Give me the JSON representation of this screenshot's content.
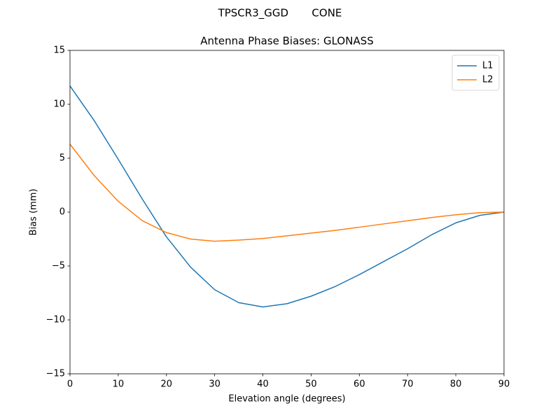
{
  "chart_data": {
    "type": "line",
    "suptitle": "TPSCR3_GGD       CONE",
    "title": "Antenna Phase Biases: GLONASS",
    "xlabel": "Elevation angle (degrees)",
    "ylabel": "Bias (mm)",
    "x": [
      0,
      5,
      10,
      15,
      20,
      25,
      30,
      35,
      40,
      45,
      50,
      55,
      60,
      65,
      70,
      75,
      80,
      85,
      90
    ],
    "series": [
      {
        "name": "L1",
        "color": "#1f77b4",
        "values": [
          11.7,
          8.5,
          4.9,
          1.2,
          -2.3,
          -5.1,
          -7.2,
          -8.4,
          -8.8,
          -8.5,
          -7.8,
          -6.9,
          -5.8,
          -4.6,
          -3.4,
          -2.1,
          -1.0,
          -0.3,
          0
        ]
      },
      {
        "name": "L2",
        "color": "#ff7f0e",
        "values": [
          6.3,
          3.4,
          1.0,
          -0.8,
          -1.9,
          -2.5,
          -2.7,
          -2.6,
          -2.45,
          -2.2,
          -1.95,
          -1.7,
          -1.4,
          -1.1,
          -0.8,
          -0.5,
          -0.25,
          -0.05,
          0
        ]
      }
    ],
    "xlim": [
      0,
      90
    ],
    "xticks": [
      0,
      10,
      20,
      30,
      40,
      50,
      60,
      70,
      80,
      90
    ],
    "ylim": [
      -15,
      15
    ],
    "yticks": [
      {
        "value": -15,
        "label": "−15"
      },
      {
        "value": -10,
        "label": "−10"
      },
      {
        "value": -5,
        "label": "−5"
      },
      0,
      5,
      10,
      15
    ],
    "legend": "upper right",
    "grid": false
  }
}
